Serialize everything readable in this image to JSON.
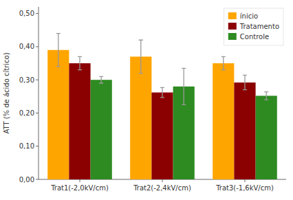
{
  "chart_data": {
    "type": "bar",
    "categories": [
      "Trat1(-2,0kV/cm)",
      "Trat2(-2,4kV/cm)",
      "Trat3(-1,6kV/cm)"
    ],
    "series": [
      {
        "name": "ínicio",
        "color": "#FFA500",
        "values": [
          0.39,
          0.37,
          0.35
        ],
        "errors": [
          0.05,
          0.05,
          0.02
        ]
      },
      {
        "name": "Tratamento",
        "color": "#8B0000",
        "values": [
          0.35,
          0.262,
          0.292
        ],
        "errors": [
          0.02,
          0.015,
          0.022
        ]
      },
      {
        "name": "Controle",
        "color": "#2E8B22",
        "values": [
          0.3,
          0.28,
          0.252
        ],
        "errors": [
          0.01,
          0.055,
          0.012
        ]
      }
    ],
    "ylabel": "ATT (% de ácido cítrico)",
    "ylim": [
      0.0,
      0.52
    ],
    "yticks": [
      {
        "value": 0.0,
        "label": "0,00"
      },
      {
        "value": 0.1,
        "label": "0,10"
      },
      {
        "value": 0.2,
        "label": "0,20"
      },
      {
        "value": 0.3,
        "label": "0,30"
      },
      {
        "value": 0.4,
        "label": "0,40"
      },
      {
        "value": 0.5,
        "label": "0,50"
      }
    ],
    "grid": false,
    "legend": "upper right"
  }
}
